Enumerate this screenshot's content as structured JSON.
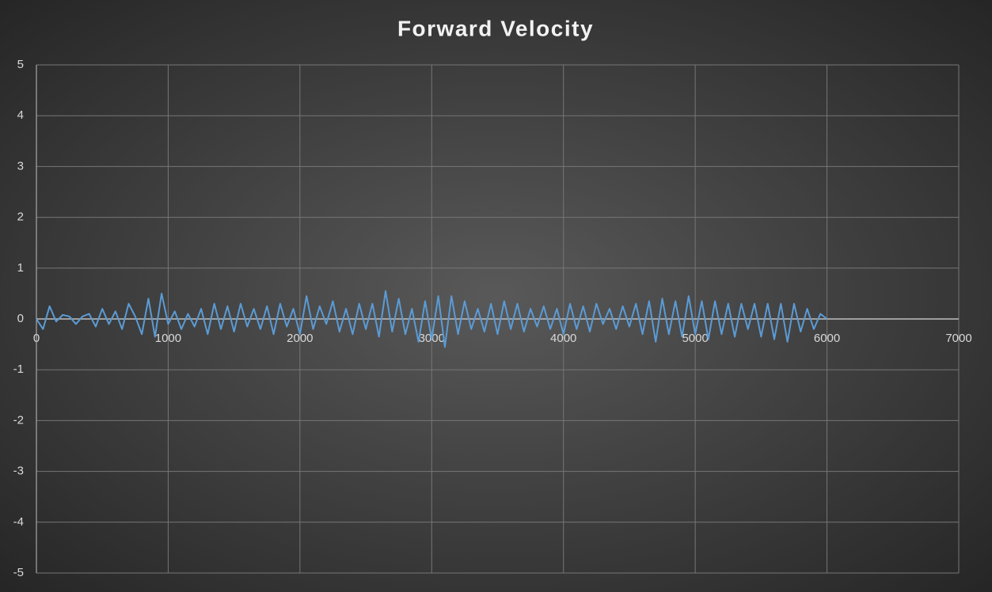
{
  "chart_data": {
    "type": "line",
    "title": "Forward Velocity",
    "x": [
      0,
      50,
      100,
      150,
      200,
      250,
      300,
      350,
      400,
      450,
      500,
      550,
      600,
      650,
      700,
      750,
      800,
      850,
      900,
      950,
      1000,
      1050,
      1100,
      1150,
      1200,
      1250,
      1300,
      1350,
      1400,
      1450,
      1500,
      1550,
      1600,
      1650,
      1700,
      1750,
      1800,
      1850,
      1900,
      1950,
      2000,
      2050,
      2100,
      2150,
      2200,
      2250,
      2300,
      2350,
      2400,
      2450,
      2500,
      2550,
      2600,
      2650,
      2700,
      2750,
      2800,
      2850,
      2900,
      2950,
      3000,
      3050,
      3100,
      3150,
      3200,
      3250,
      3300,
      3350,
      3400,
      3450,
      3500,
      3550,
      3600,
      3650,
      3700,
      3750,
      3800,
      3850,
      3900,
      3950,
      4000,
      4050,
      4100,
      4150,
      4200,
      4250,
      4300,
      4350,
      4400,
      4450,
      4500,
      4550,
      4600,
      4650,
      4700,
      4750,
      4800,
      4850,
      4900,
      4950,
      5000,
      5050,
      5100,
      5150,
      5200,
      5250,
      5300,
      5350,
      5400,
      5450,
      5500,
      5550,
      5600,
      5650,
      5700,
      5750,
      5800,
      5850,
      5900,
      5950,
      6000
    ],
    "series": [
      {
        "color": "#5b9bd5",
        "values": [
          0,
          -0.2,
          0.25,
          -0.05,
          0.08,
          0.05,
          -0.1,
          0.05,
          0.1,
          -0.15,
          0.2,
          -0.1,
          0.15,
          -0.2,
          0.3,
          0.05,
          -0.3,
          0.4,
          -0.35,
          0.5,
          -0.1,
          0.15,
          -0.2,
          0.1,
          -0.15,
          0.2,
          -0.3,
          0.3,
          -0.2,
          0.25,
          -0.25,
          0.3,
          -0.15,
          0.2,
          -0.2,
          0.25,
          -0.3,
          0.3,
          -0.15,
          0.2,
          -0.3,
          0.45,
          -0.2,
          0.25,
          -0.1,
          0.35,
          -0.25,
          0.2,
          -0.3,
          0.3,
          -0.2,
          0.3,
          -0.35,
          0.55,
          -0.25,
          0.4,
          -0.3,
          0.2,
          -0.45,
          0.35,
          -0.4,
          0.45,
          -0.55,
          0.45,
          -0.3,
          0.35,
          -0.2,
          0.2,
          -0.25,
          0.3,
          -0.3,
          0.35,
          -0.2,
          0.3,
          -0.25,
          0.2,
          -0.15,
          0.25,
          -0.2,
          0.2,
          -0.3,
          0.3,
          -0.2,
          0.25,
          -0.25,
          0.3,
          -0.1,
          0.2,
          -0.2,
          0.25,
          -0.15,
          0.3,
          -0.3,
          0.35,
          -0.45,
          0.4,
          -0.3,
          0.35,
          -0.35,
          0.45,
          -0.3,
          0.35,
          -0.4,
          0.35,
          -0.3,
          0.3,
          -0.35,
          0.3,
          -0.2,
          0.3,
          -0.35,
          0.3,
          -0.4,
          0.3,
          -0.45,
          0.3,
          -0.25,
          0.2,
          -0.2,
          0.1,
          0
        ]
      }
    ],
    "xlim": [
      0,
      7000
    ],
    "xticks": [
      0,
      1000,
      2000,
      3000,
      4000,
      5000,
      6000,
      7000
    ],
    "ylim": [
      -5,
      5
    ],
    "yticks": [
      -5,
      -4,
      -3,
      -2,
      -1,
      0,
      1,
      2,
      3,
      4,
      5
    ],
    "grid": true
  }
}
